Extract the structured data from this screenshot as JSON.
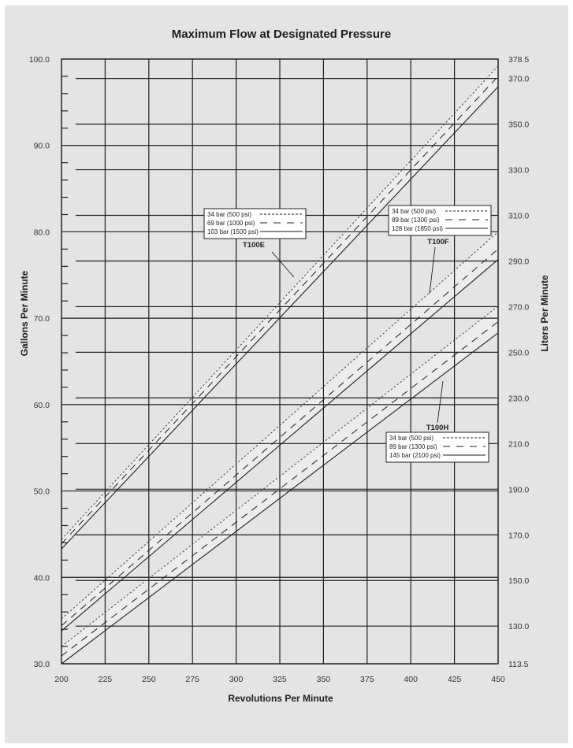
{
  "chart_data": {
    "type": "line",
    "title": "Maximum Flow at Designated Pressure",
    "xlabel": "Revolutions Per Minute",
    "ylabel": "Gallons Per Minute",
    "ylabel_right": "Liters Per Minute",
    "xlim": [
      200,
      450
    ],
    "ylim": [
      30.0,
      100.0
    ],
    "ylim_right": [
      113.5,
      378.5
    ],
    "x_ticks": [
      "200",
      "225",
      "250",
      "275",
      "300",
      "325",
      "350",
      "375",
      "400",
      "425",
      "450"
    ],
    "y_ticks": [
      "100.0",
      "90.0",
      "80.0",
      "70.0",
      "60.0",
      "50.0",
      "40.0",
      "30.0"
    ],
    "y_ticks_right": [
      "378.5",
      "370.0",
      "350.0",
      "330.0",
      "310.0",
      "290.0",
      "270.0",
      "250.0",
      "230.0",
      "210.0",
      "190.0",
      "170.0",
      "150.0",
      "130.0",
      "113.5"
    ],
    "grid": true,
    "x": [
      200,
      450
    ],
    "groups": [
      {
        "model": "T100E",
        "legend_position": "upper-left",
        "series": [
          {
            "name": "34 bar (500 psi)",
            "style": "dotted",
            "values": [
              44.4,
              99.2
            ]
          },
          {
            "name": "69 bar (1000 psi)",
            "style": "dashed",
            "values": [
              43.9,
              98.0
            ]
          },
          {
            "name": "103 bar (1500 psi)",
            "style": "solid",
            "values": [
              43.3,
              96.8
            ]
          }
        ]
      },
      {
        "model": "T100F",
        "legend_position": "upper-right",
        "series": [
          {
            "name": "34 bar (500 psi)",
            "style": "dotted",
            "values": [
              35.2,
              80.0
            ]
          },
          {
            "name": "89 bar (1300 psi)",
            "style": "dashed",
            "values": [
              34.4,
              78.0
            ]
          },
          {
            "name": "128 bar (1850 psi)",
            "style": "solid",
            "values": [
              33.8,
              76.8
            ]
          }
        ]
      },
      {
        "model": "T100H",
        "legend_position": "lower-right",
        "series": [
          {
            "name": "34 bar (500 psi)",
            "style": "dotted",
            "values": [
              32.0,
              71.4
            ]
          },
          {
            "name": "89 bar (1300 psi)",
            "style": "dashed",
            "values": [
              30.9,
              69.6
            ]
          },
          {
            "name": "145 bar (2100 psi)",
            "style": "solid",
            "values": [
              30.0,
              68.3
            ]
          }
        ]
      }
    ]
  },
  "colors": {
    "background": "#e2e5e4",
    "band_fill": "#ebedec",
    "line": "#1e1e1e",
    "legend_bg": "#ffffff"
  }
}
